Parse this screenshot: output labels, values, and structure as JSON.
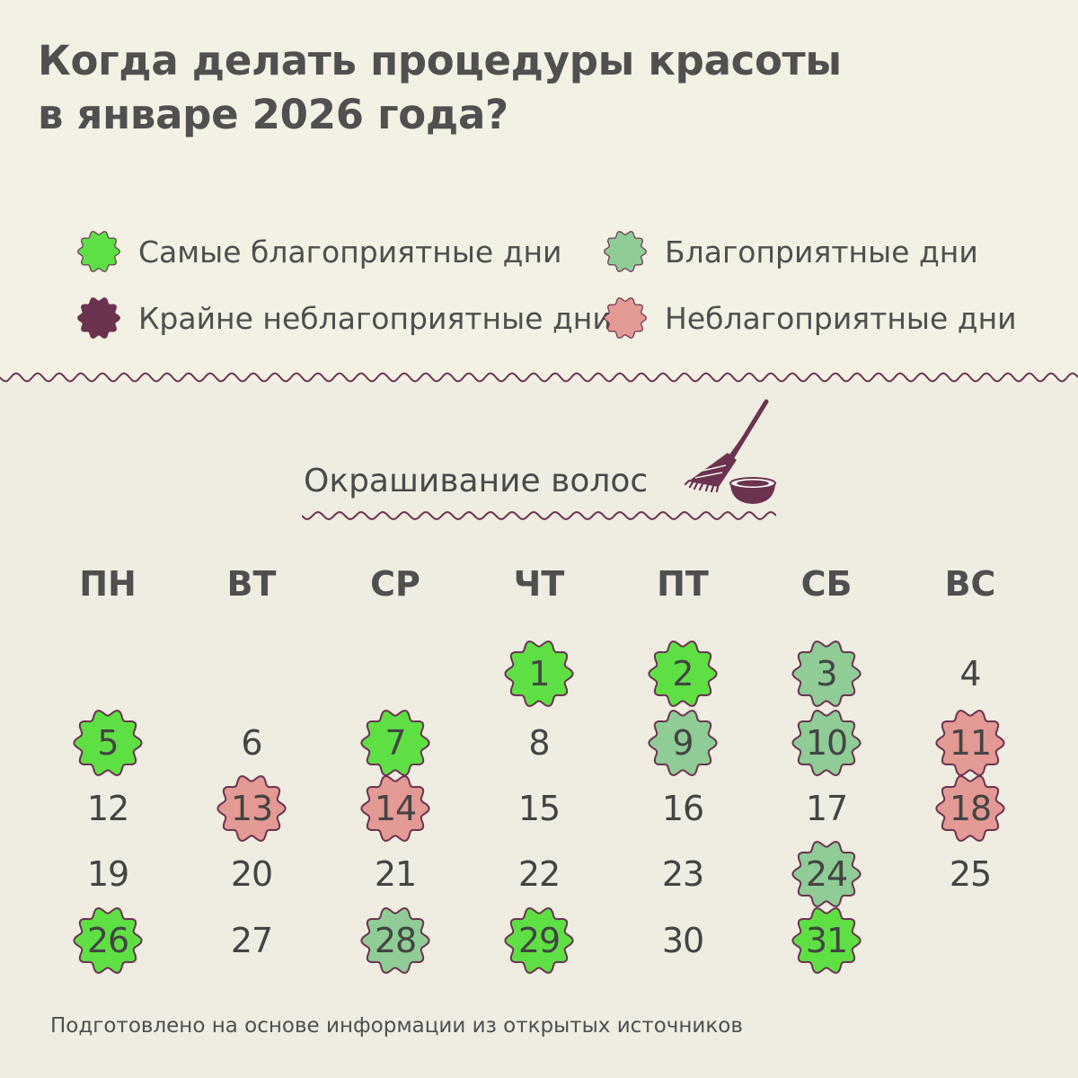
{
  "title": {
    "line1": "Когда делать процедуры красоты",
    "line2": "в январе 2026 года?"
  },
  "colors": {
    "most_favorable": "#5ee044",
    "favorable": "#8fcc96",
    "extremely_unfavorable": "#6b3350",
    "unfavorable": "#e39994",
    "outline": "#6b3350",
    "neutral": "none"
  },
  "legend": [
    {
      "key": "most_favorable",
      "label": "Самые благоприятные дни"
    },
    {
      "key": "favorable",
      "label": "Благоприятные дни"
    },
    {
      "key": "extremely_unfavorable",
      "label": "Крайне неблагоприятные дни"
    },
    {
      "key": "unfavorable",
      "label": "Неблагоприятные дни"
    }
  ],
  "section": {
    "title": "Окрашивание волос",
    "icon": "hair-dye-brush-and-bowl-icon"
  },
  "weekdays": [
    "ПН",
    "ВТ",
    "СР",
    "ЧТ",
    "ПТ",
    "СБ",
    "ВС"
  ],
  "first_weekday_index": 3,
  "days": [
    {
      "day": "1",
      "type": "most_favorable"
    },
    {
      "day": "2",
      "type": "most_favorable"
    },
    {
      "day": "3",
      "type": "favorable"
    },
    {
      "day": "4",
      "type": "neutral"
    },
    {
      "day": "5",
      "type": "most_favorable"
    },
    {
      "day": "6",
      "type": "neutral"
    },
    {
      "day": "7",
      "type": "most_favorable"
    },
    {
      "day": "8",
      "type": "neutral"
    },
    {
      "day": "9",
      "type": "favorable"
    },
    {
      "day": "10",
      "type": "favorable"
    },
    {
      "day": "11",
      "type": "unfavorable"
    },
    {
      "day": "12",
      "type": "neutral"
    },
    {
      "day": "13",
      "type": "unfavorable"
    },
    {
      "day": "14",
      "type": "unfavorable"
    },
    {
      "day": "15",
      "type": "neutral"
    },
    {
      "day": "16",
      "type": "neutral"
    },
    {
      "day": "17",
      "type": "neutral"
    },
    {
      "day": "18",
      "type": "unfavorable"
    },
    {
      "day": "19",
      "type": "neutral"
    },
    {
      "day": "20",
      "type": "neutral"
    },
    {
      "day": "21",
      "type": "neutral"
    },
    {
      "day": "22",
      "type": "neutral"
    },
    {
      "day": "23",
      "type": "neutral"
    },
    {
      "day": "24",
      "type": "favorable"
    },
    {
      "day": "25",
      "type": "neutral"
    },
    {
      "day": "26",
      "type": "most_favorable"
    },
    {
      "day": "27",
      "type": "neutral"
    },
    {
      "day": "28",
      "type": "favorable"
    },
    {
      "day": "29",
      "type": "most_favorable"
    },
    {
      "day": "30",
      "type": "neutral"
    },
    {
      "day": "31",
      "type": "most_favorable"
    }
  ],
  "footer": "Подготовлено на основе информации из открытых источников"
}
